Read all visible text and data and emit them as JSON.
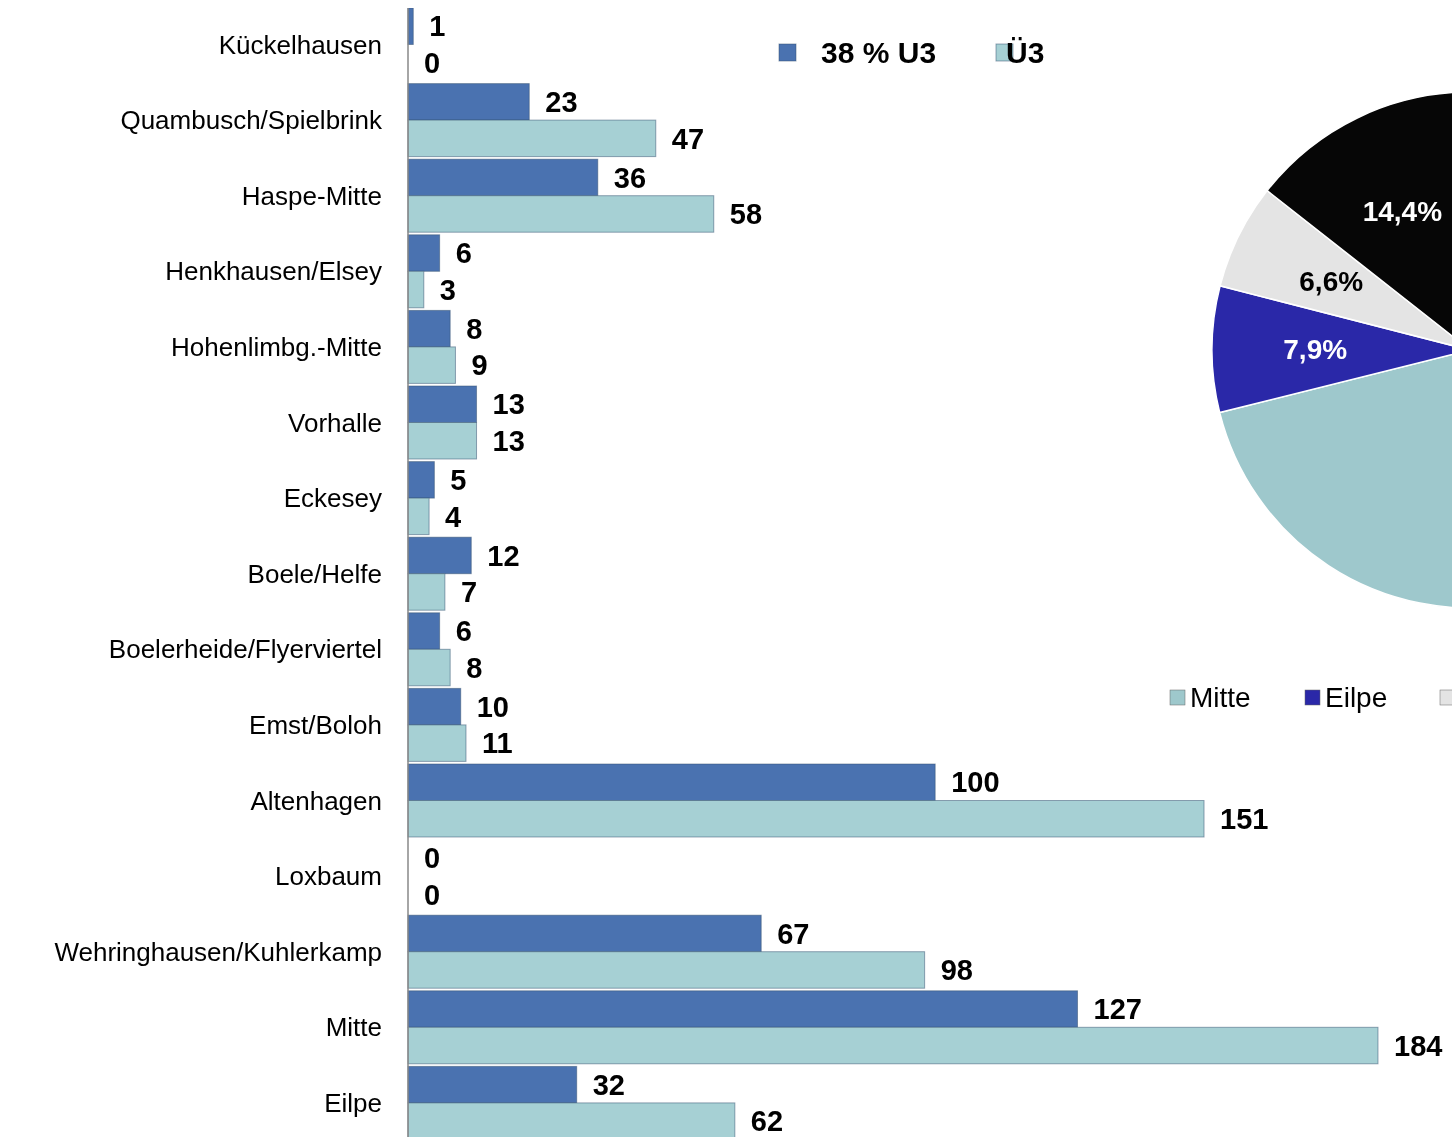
{
  "chart_data": [
    {
      "type": "bar",
      "orientation": "horizontal",
      "categories": [
        "Kückelhausen",
        "Quambusch/Spielbrink",
        "Haspe-Mitte",
        "Henkhausen/Elsey",
        "Hohenlimbg.-Mitte",
        "Vorhalle",
        "Eckesey",
        "Boele/Helfe",
        "Boelerheide/Flyerviertel",
        "Emst/Boloh",
        "Altenhagen",
        "Loxbaum",
        "Wehringhausen/Kuhlerkamp",
        "Mitte",
        "Eilpe"
      ],
      "series": [
        {
          "name": "38 % U3",
          "color": "#4a72b0",
          "values": [
            1,
            23,
            36,
            6,
            8,
            13,
            5,
            12,
            6,
            10,
            100,
            0,
            67,
            127,
            32
          ]
        },
        {
          "name": "Ü3",
          "color": "#a6d0d4",
          "values": [
            0,
            47,
            58,
            3,
            9,
            13,
            4,
            7,
            8,
            11,
            151,
            0,
            98,
            184,
            62
          ]
        }
      ],
      "data_labels": true,
      "legend": "top"
    },
    {
      "type": "pie",
      "categories": [
        "Mitte",
        "Eilpe",
        null,
        null
      ],
      "values": [
        71.1,
        7.9,
        6.6,
        14.4
      ],
      "colors": [
        "#9ec8cc",
        "#2a28a8",
        "#e4e4e4",
        "#060606"
      ],
      "value_labels": [
        null,
        "7,9%",
        "6,6%",
        "14,4%"
      ],
      "legend": "bottom"
    }
  ]
}
